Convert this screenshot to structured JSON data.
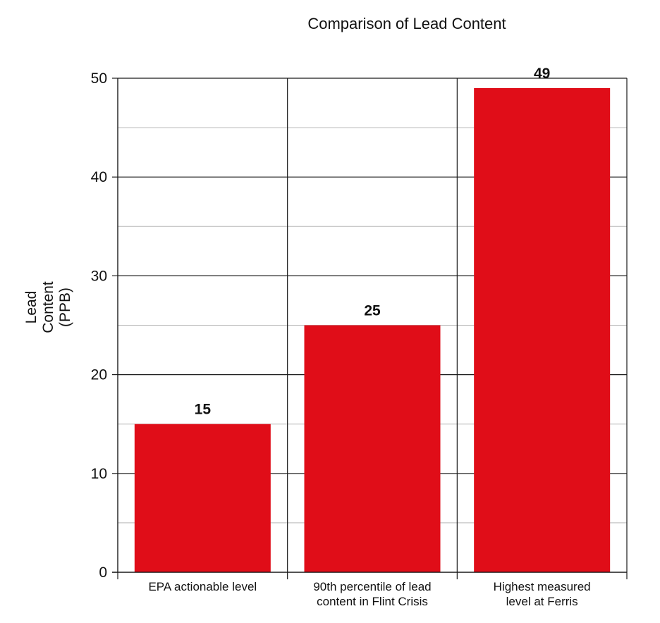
{
  "chart_data": {
    "type": "bar",
    "title": "Comparison of Lead Content",
    "ylabel": [
      "Lead",
      "Content",
      "(PPB)"
    ],
    "xlabel": "",
    "categories": [
      [
        "EPA actionable level"
      ],
      [
        "90th percentile of lead",
        "content in Flint Crisis"
      ],
      [
        "Highest measured",
        "level at Ferris"
      ]
    ],
    "values": [
      15,
      25,
      49
    ],
    "data_labels": [
      "15",
      "25",
      "49"
    ],
    "ylim": [
      0,
      50
    ],
    "yticks": [
      0,
      10,
      20,
      30,
      40,
      50
    ],
    "minor_grid_step": 5,
    "grid": true,
    "legend": "none",
    "bar_color": "#e00d18"
  }
}
